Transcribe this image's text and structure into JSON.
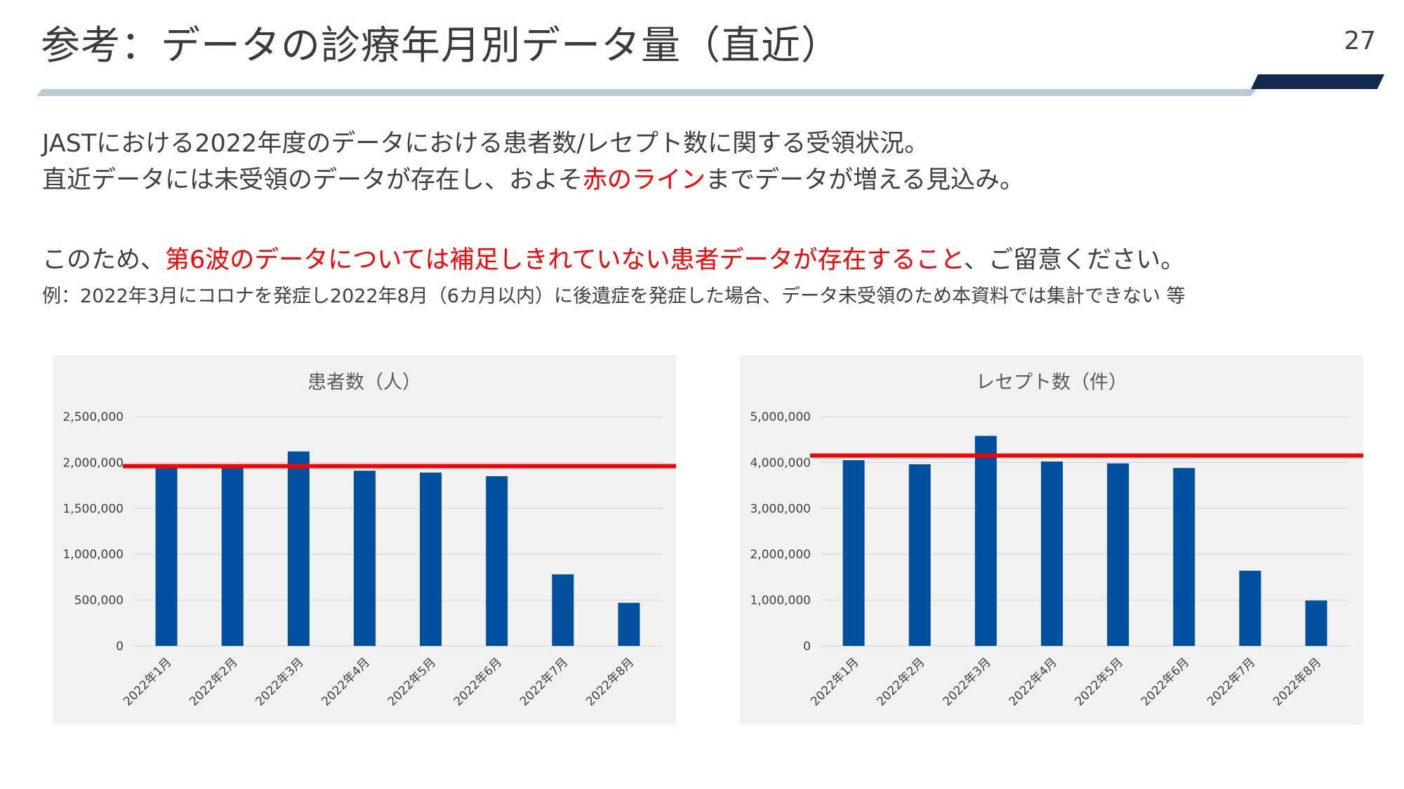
{
  "slide": {
    "title": "参考：データの診療年月別データ量（直近）",
    "page_number": "27"
  },
  "text": {
    "line1": "JASTにおける2022年度のデータにおける患者数/レセプト数に関する受領状況。",
    "line2_before": "直近データには未受領のデータが存在し、およそ",
    "line2_red": "赤のライン",
    "line2_after": "までデータが増える見込み。",
    "line3_before": "このため、",
    "line3_red": "第6波のデータについては補足しきれていない患者データが存在すること",
    "line3_after": "、ご留意ください。",
    "line4": "例：2022年3月にコロナを発症し2022年8月（6カ月以内）に後遺症を発症した場合、データ未受領のため本資料では集計できない 等"
  },
  "colors": {
    "bar": "#0050a0",
    "reference_line": "#ff0000",
    "panel_bg": "#f2f2f2",
    "title_band_light": "#b8cad8",
    "title_band_dark": "#14294e"
  },
  "chart_data": [
    {
      "type": "bar",
      "title": "患者数（人）",
      "categories": [
        "2022年1月",
        "2022年2月",
        "2022年3月",
        "2022年4月",
        "2022年5月",
        "2022年6月",
        "2022年7月",
        "2022年8月"
      ],
      "values": [
        1950000,
        1950000,
        2120000,
        1910000,
        1890000,
        1850000,
        780000,
        470000
      ],
      "ylim": [
        0,
        2500000
      ],
      "yticks": [
        "0",
        "500,000",
        "1,000,000",
        "1,500,000",
        "2,000,000",
        "2,500,000"
      ],
      "reference_line": 1960000,
      "grid": true,
      "legend": "none"
    },
    {
      "type": "bar",
      "title": "レセプト数（件）",
      "categories": [
        "2022年1月",
        "2022年2月",
        "2022年3月",
        "2022年4月",
        "2022年5月",
        "2022年6月",
        "2022年7月",
        "2022年8月"
      ],
      "values": [
        4050000,
        3960000,
        4580000,
        4020000,
        3980000,
        3880000,
        1640000,
        990000
      ],
      "ylim": [
        0,
        5000000
      ],
      "yticks": [
        "0",
        "1,000,000",
        "2,000,000",
        "3,000,000",
        "4,000,000",
        "5,000,000"
      ],
      "reference_line": 4150000,
      "grid": true,
      "legend": "none"
    }
  ]
}
